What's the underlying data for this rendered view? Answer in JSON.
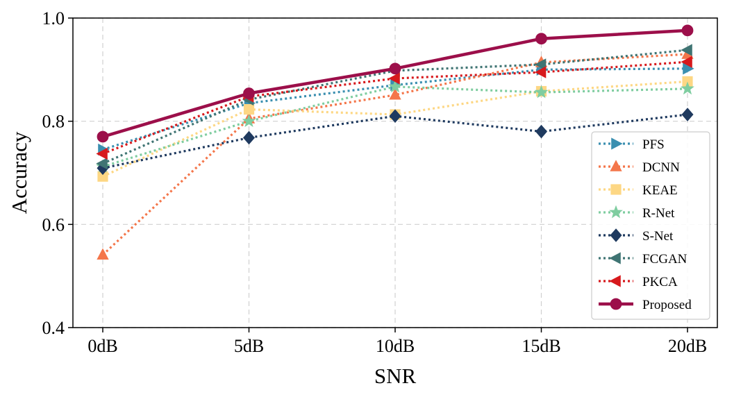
{
  "chart_data": {
    "type": "line",
    "title": "",
    "xlabel": "SNR",
    "ylabel": "Accuracy",
    "categories": [
      "0dB",
      "5dB",
      "10dB",
      "15dB",
      "20dB"
    ],
    "ylim": [
      0.4,
      1.0
    ],
    "yticks": [
      "0.4",
      "0.6",
      "0.8",
      "1.0"
    ],
    "grid": true,
    "legend_position": "lower-right",
    "series": [
      {
        "name": "PFS",
        "values": [
          0.745,
          0.835,
          0.87,
          0.9,
          0.902
        ],
        "color": "#3a8fb0",
        "marker": "triangle-right",
        "style": "dotted"
      },
      {
        "name": "DCNN",
        "values": [
          0.541,
          0.805,
          0.851,
          0.914,
          0.93
        ],
        "color": "#f4764a",
        "marker": "triangle-up",
        "style": "dotted"
      },
      {
        "name": "KEAE",
        "values": [
          0.693,
          0.823,
          0.813,
          0.858,
          0.877
        ],
        "color": "#fdd784",
        "marker": "square",
        "style": "dotted"
      },
      {
        "name": "R-Net",
        "values": [
          0.712,
          0.8,
          0.867,
          0.856,
          0.863
        ],
        "color": "#7fcda0",
        "marker": "star",
        "style": "dotted"
      },
      {
        "name": "S-Net",
        "values": [
          0.709,
          0.768,
          0.81,
          0.78,
          0.813
        ],
        "color": "#1f3a5f",
        "marker": "diamond",
        "style": "dotted"
      },
      {
        "name": "FCGAN",
        "values": [
          0.718,
          0.842,
          0.898,
          0.91,
          0.938
        ],
        "color": "#3f7473",
        "marker": "triangle-left",
        "style": "dotted"
      },
      {
        "name": "PKCA",
        "values": [
          0.737,
          0.848,
          0.883,
          0.895,
          0.915
        ],
        "color": "#d7191c",
        "marker": "triangle-left",
        "style": "dotted"
      },
      {
        "name": "Proposed",
        "values": [
          0.77,
          0.854,
          0.902,
          0.96,
          0.976
        ],
        "color": "#9c0f4a",
        "marker": "circle",
        "style": "solid"
      }
    ]
  }
}
